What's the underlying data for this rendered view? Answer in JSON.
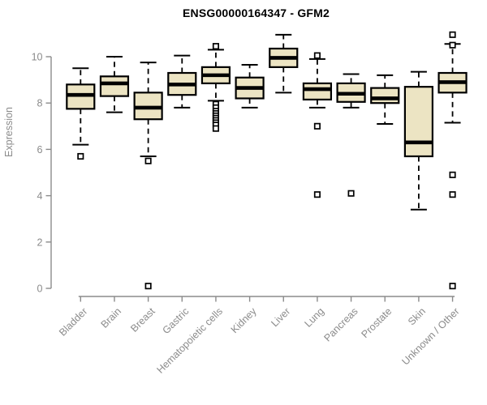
{
  "chart_data": {
    "type": "box",
    "title": "ENSG00000164347 - GFM2",
    "ylabel": "Expression",
    "xlabel": "",
    "ylim": [
      0,
      11.4
    ],
    "yticks": [
      0,
      2,
      4,
      6,
      8,
      10
    ],
    "grid": false,
    "legend": false,
    "colors": {
      "box_fill": "#ece4c3",
      "box_stroke": "#000000",
      "median": "#000000",
      "axis": "#8b8b8b",
      "tick_text": "#8b8b8b",
      "title_text": "#000000",
      "outlier_fill": "#ffffff"
    },
    "categories": [
      "Bladder",
      "Brain",
      "Breast",
      "Gastric",
      "Hematopoietic cells",
      "Kidney",
      "Liver",
      "Lung",
      "Pancreas",
      "Prostate",
      "Skin",
      "Unknown / Other"
    ],
    "series": [
      {
        "label": "Bladder",
        "whisker_low": 6.2,
        "q1": 7.75,
        "median": 8.35,
        "q3": 8.8,
        "whisker_high": 9.5,
        "outliers": [
          5.7
        ]
      },
      {
        "label": "Brain",
        "whisker_low": 7.6,
        "q1": 8.3,
        "median": 8.85,
        "q3": 9.15,
        "whisker_high": 10.0,
        "outliers": []
      },
      {
        "label": "Breast",
        "whisker_low": 5.7,
        "q1": 7.3,
        "median": 7.8,
        "q3": 8.45,
        "whisker_high": 9.75,
        "outliers": [
          5.5,
          0.1
        ]
      },
      {
        "label": "Gastric",
        "whisker_low": 7.8,
        "q1": 8.35,
        "median": 8.8,
        "q3": 9.3,
        "whisker_high": 10.05,
        "outliers": []
      },
      {
        "label": "Hematopoietic cells",
        "whisker_low": 8.1,
        "q1": 8.85,
        "median": 9.2,
        "q3": 9.55,
        "whisker_high": 10.3,
        "outliers": [
          10.45,
          7.95,
          7.8,
          7.65,
          7.55,
          7.45,
          7.35,
          7.25,
          7.15,
          7.05,
          6.9
        ]
      },
      {
        "label": "Kidney",
        "whisker_low": 7.8,
        "q1": 8.2,
        "median": 8.65,
        "q3": 9.1,
        "whisker_high": 9.65,
        "outliers": []
      },
      {
        "label": "Liver",
        "whisker_low": 8.45,
        "q1": 9.55,
        "median": 9.95,
        "q3": 10.35,
        "whisker_high": 10.95,
        "outliers": []
      },
      {
        "label": "Lung",
        "whisker_low": 7.8,
        "q1": 8.15,
        "median": 8.6,
        "q3": 8.85,
        "whisker_high": 9.9,
        "outliers": [
          10.05,
          7.0,
          4.05
        ]
      },
      {
        "label": "Pancreas",
        "whisker_low": 7.8,
        "q1": 8.05,
        "median": 8.4,
        "q3": 8.85,
        "whisker_high": 9.25,
        "outliers": [
          4.1
        ]
      },
      {
        "label": "Prostate",
        "whisker_low": 7.1,
        "q1": 8.0,
        "median": 8.2,
        "q3": 8.65,
        "whisker_high": 9.2,
        "outliers": []
      },
      {
        "label": "Skin",
        "whisker_low": 3.4,
        "q1": 5.7,
        "median": 6.3,
        "q3": 8.7,
        "whisker_high": 9.35,
        "outliers": []
      },
      {
        "label": "Unknown / Other",
        "whisker_low": 7.15,
        "q1": 8.45,
        "median": 8.9,
        "q3": 9.3,
        "whisker_high": 10.55,
        "outliers": [
          10.95,
          10.5,
          4.9,
          4.05,
          0.1
        ]
      }
    ]
  }
}
